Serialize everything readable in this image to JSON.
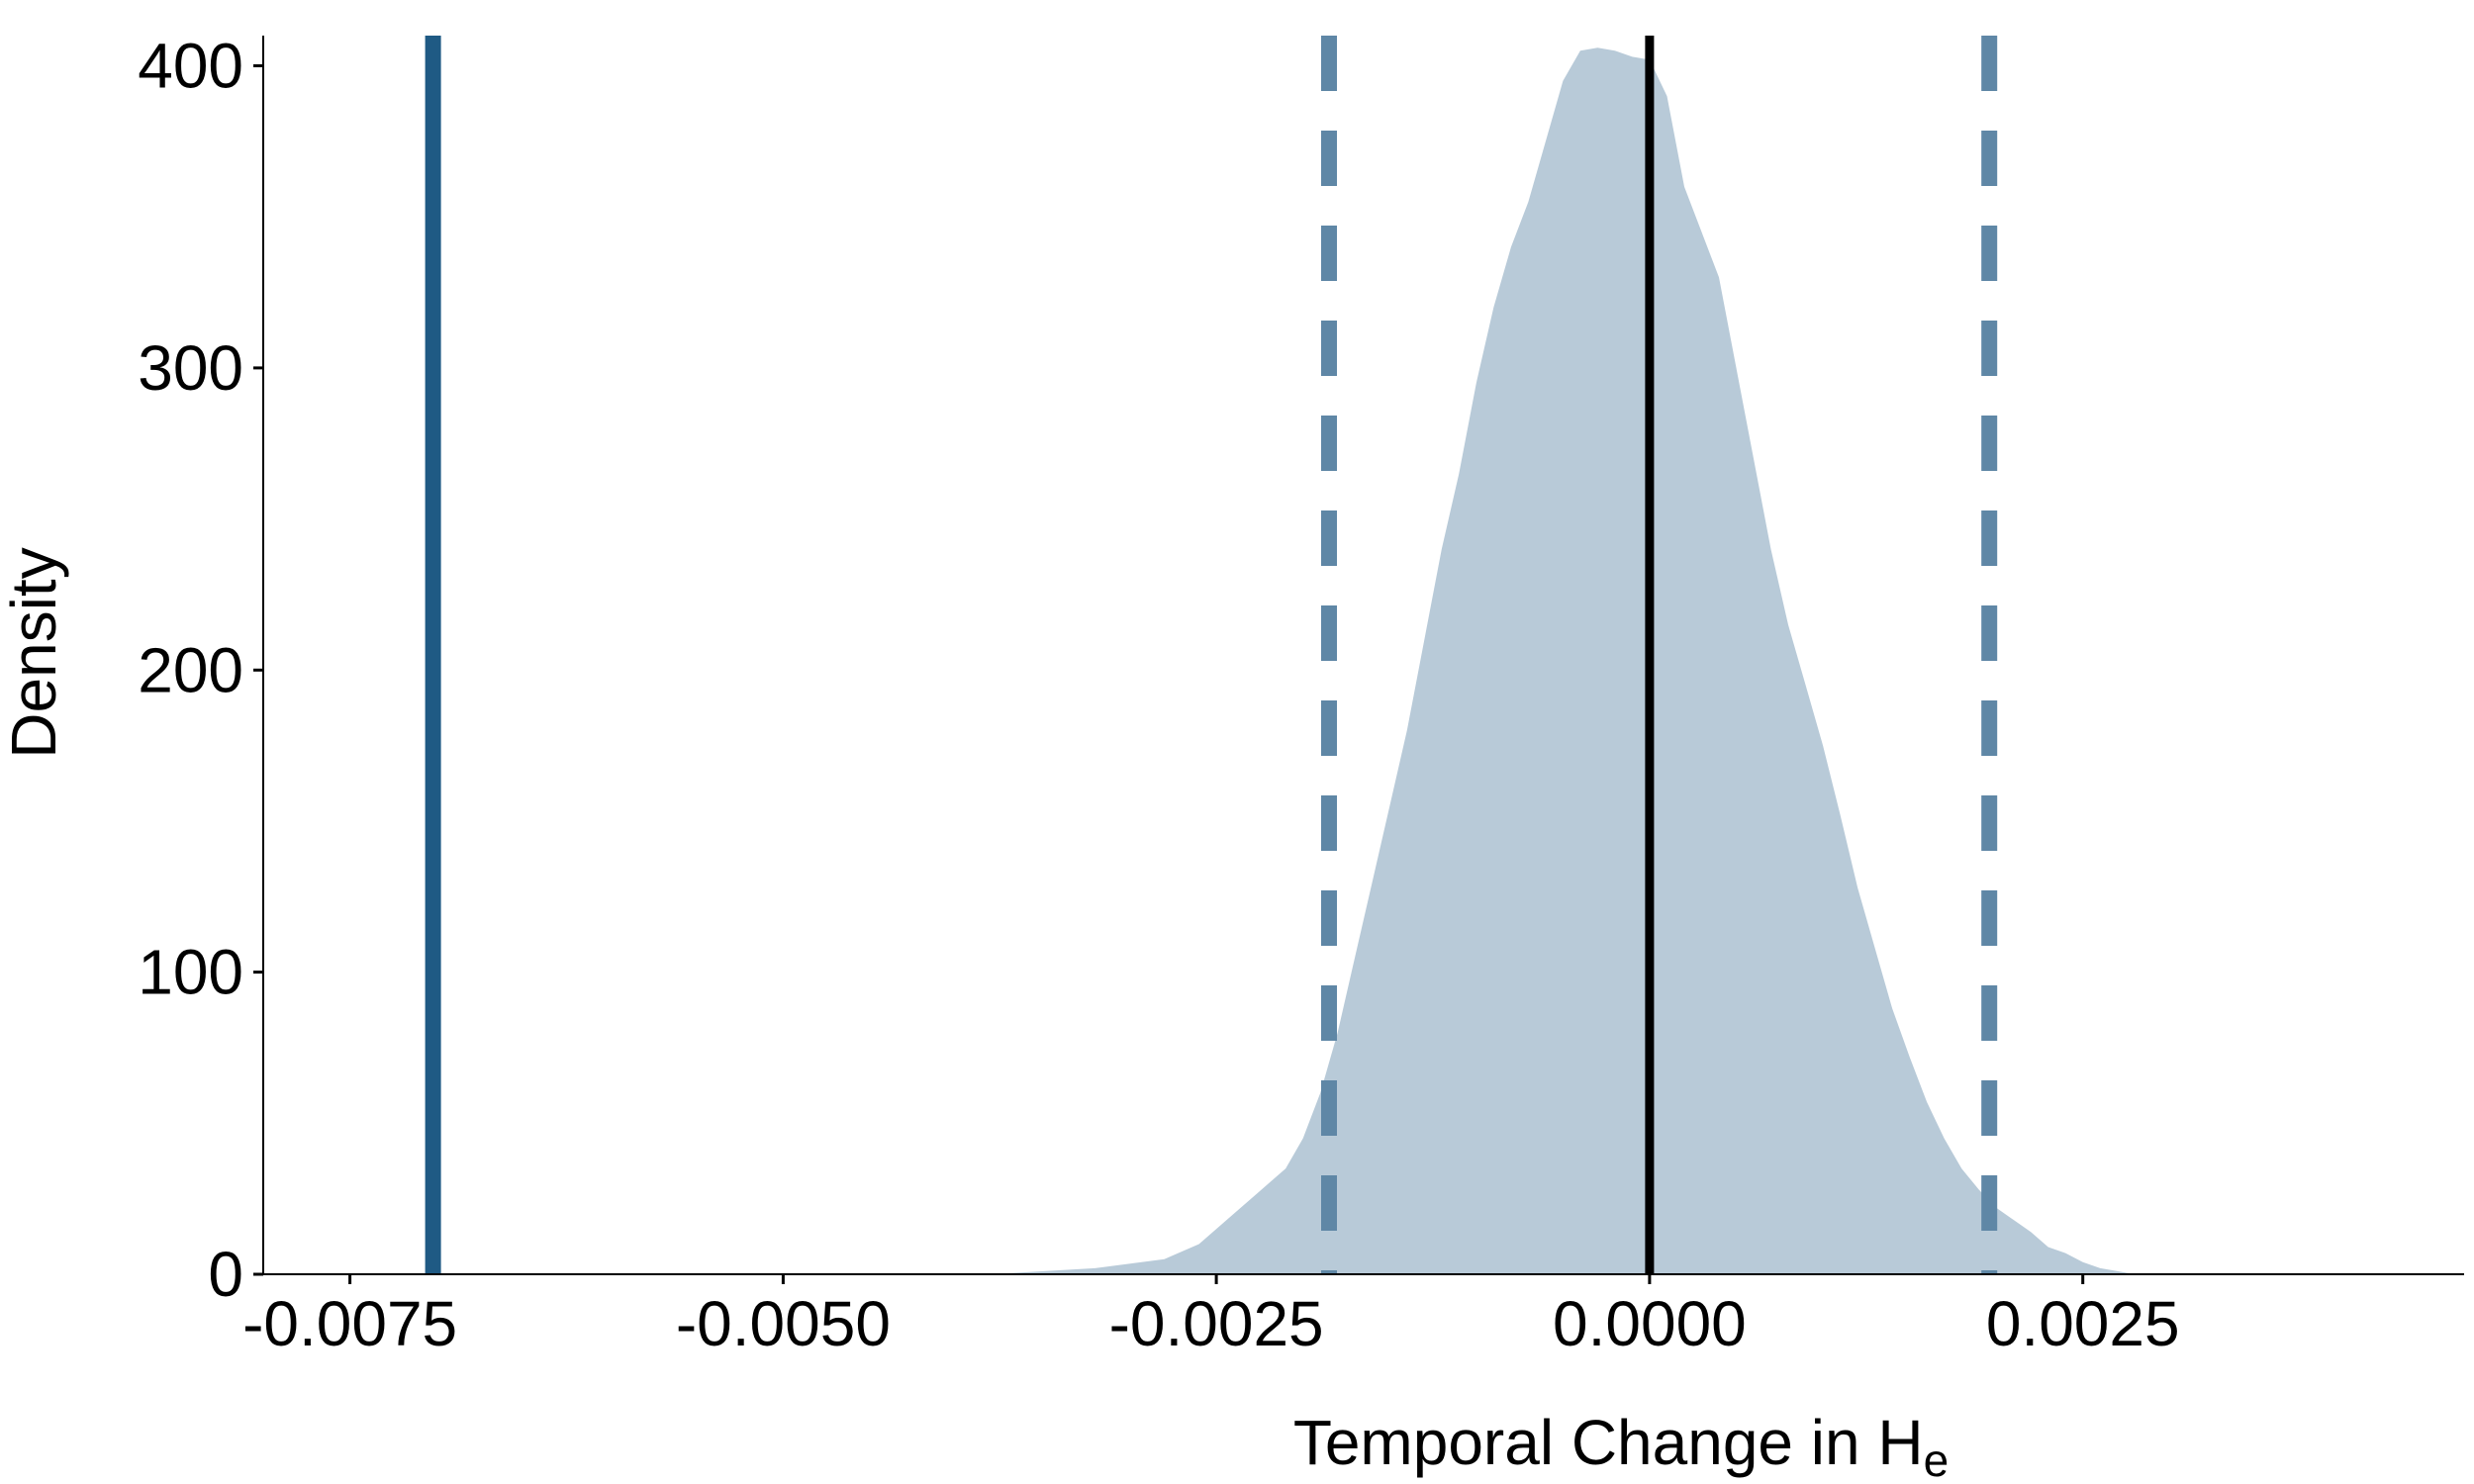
{
  "chart_data": {
    "type": "area",
    "title": "",
    "xlabel": "Temporal Change in H",
    "xlabel_subscript": "e",
    "ylabel": "Density",
    "xlim": [
      -0.008,
      0.0047
    ],
    "ylim": [
      0,
      410
    ],
    "x_ticks": [
      -0.0075,
      -0.005,
      -0.0025,
      0.0,
      0.0025
    ],
    "x_tick_labels": [
      "-0.0075",
      "-0.0050",
      "-0.0025",
      "0.0000",
      "0.0025"
    ],
    "y_ticks": [
      0,
      100,
      200,
      300,
      400
    ],
    "y_tick_labels": [
      "0",
      "100",
      "200",
      "300",
      "400"
    ],
    "grid": false,
    "density": {
      "x": [
        -0.0038,
        -0.0032,
        -0.0028,
        -0.0026,
        -0.0024,
        -0.0022,
        -0.0021,
        -0.002,
        -0.0019,
        -0.0018,
        -0.0017,
        -0.0016,
        -0.0015,
        -0.0014,
        -0.0013,
        -0.0012,
        -0.0011,
        -0.001,
        -0.0009,
        -0.0008,
        -0.0007,
        -0.0006,
        -0.0005,
        -0.0004,
        -0.0003,
        -0.0002,
        -0.0001,
        0.0,
        0.0001,
        0.0002,
        0.0003,
        0.0004,
        0.0005,
        0.0006,
        0.0007,
        0.0008,
        0.0009,
        0.001,
        0.0011,
        0.0012,
        0.0013,
        0.0014,
        0.0015,
        0.0016,
        0.0017,
        0.0018,
        0.0019,
        0.002,
        0.0021,
        0.0022,
        0.0023,
        0.0024,
        0.0025,
        0.0026,
        0.0027,
        0.0028,
        0.003,
        0.0032,
        0.0035,
        0.004,
        0.0042
      ],
      "y": [
        0,
        2,
        5,
        10,
        20,
        30,
        35,
        45,
        60,
        80,
        105,
        130,
        155,
        180,
        210,
        240,
        265,
        295,
        320,
        340,
        355,
        375,
        395,
        405,
        406,
        405,
        403,
        402,
        390,
        360,
        345,
        330,
        300,
        270,
        240,
        215,
        195,
        175,
        152,
        128,
        108,
        88,
        72,
        57,
        45,
        35,
        28,
        22,
        18,
        14,
        9,
        7,
        4,
        2,
        1,
        0,
        0,
        0,
        0,
        0,
        0
      ]
    },
    "reference_lines": [
      {
        "kind": "observed",
        "x": -0.00702,
        "style": "solid",
        "color": "#1f5a84"
      },
      {
        "kind": "lower-bound",
        "x": -0.00185,
        "style": "dashed",
        "color": "#5f87a6"
      },
      {
        "kind": "upper-bound",
        "x": 0.00196,
        "style": "dashed",
        "color": "#5f87a6"
      },
      {
        "kind": "mean",
        "x": 0.0,
        "style": "solid",
        "color": "#000000"
      }
    ],
    "colors": {
      "density_fill": "#b8cad8",
      "axis": "#000000"
    }
  }
}
